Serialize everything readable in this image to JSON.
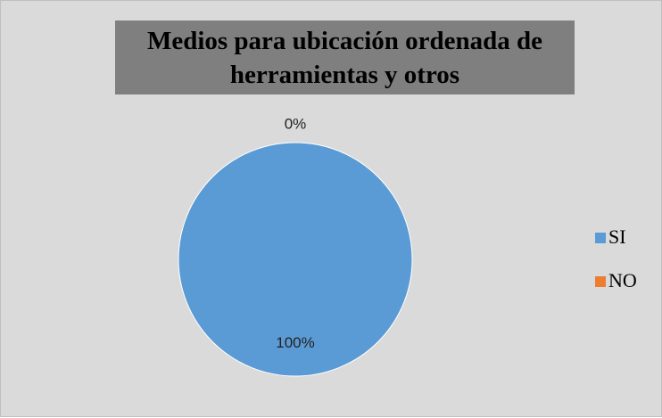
{
  "chart_data": {
    "type": "pie",
    "title": "Medios para ubicación ordenada de herramientas y otros",
    "categories": [
      "SI",
      "NO"
    ],
    "values": [
      100,
      0
    ],
    "value_labels": [
      "100%",
      "0%"
    ],
    "colors": [
      "#5b9bd5",
      "#ed7d31"
    ],
    "legend": "right"
  }
}
